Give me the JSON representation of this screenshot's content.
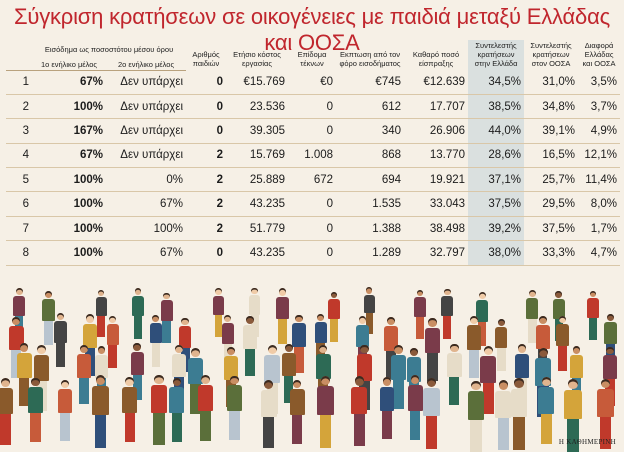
{
  "title": "Σύγκριση κρατήσεων σε οικογένειες με παιδιά μεταξύ Ελλάδας και ΟΟΣΑ",
  "headers": {
    "income_group": "Εισόδημα ως ποσοστότου μέσου όρου",
    "adult1": "1ο ενήλικο μέλος",
    "adult2": "2ο ενήλικο μέλος",
    "children": "Αριθμός παιδιών",
    "gross": "Ετήσιο κόστος εργασίας",
    "allowance": "Επίδομα τέκνων",
    "tax_credit": "Εκπτωση από τον φόρο εισοδήματος",
    "net": "Καθαρό ποσό είσπραξης",
    "rate_gr": "Συντελεστής κρατήσεων στην Ελλάδα",
    "rate_oecd": "Συντελεστής κρατήσεων στον ΟΟΣΑ",
    "diff": "Διαφορά Ελλάδας και ΟΟΣΑ"
  },
  "rows": [
    {
      "idx": "1",
      "adult1": "67%",
      "adult2": "Δεν υπάρχει",
      "children": "0",
      "gross": "€15.769",
      "allowance": "€0",
      "tax_credit": "€745",
      "net": "€12.639",
      "rate_gr": "34,5%",
      "rate_oecd": "31,0%",
      "diff": "3,5%"
    },
    {
      "idx": "2",
      "adult1": "100%",
      "adult2": "Δεν υπάρχει",
      "children": "0",
      "gross": "23.536",
      "allowance": "0",
      "tax_credit": "612",
      "net": "17.707",
      "rate_gr": "38,5%",
      "rate_oecd": "34,8%",
      "diff": "3,7%"
    },
    {
      "idx": "3",
      "adult1": "167%",
      "adult2": "Δεν υπάρχει",
      "children": "0",
      "gross": "39.305",
      "allowance": "0",
      "tax_credit": "340",
      "net": "26.906",
      "rate_gr": "44,0%",
      "rate_oecd": "39,1%",
      "diff": "4,9%"
    },
    {
      "idx": "4",
      "adult1": "67%",
      "adult2": "Δεν υπάρχει",
      "children": "2",
      "gross": "15.769",
      "allowance": "1.008",
      "tax_credit": "868",
      "net": "13.770",
      "rate_gr": "28,6%",
      "rate_oecd": "16,5%",
      "diff": "12,1%"
    },
    {
      "idx": "5",
      "adult1": "100%",
      "adult2": "0%",
      "children": "2",
      "gross": "25.889",
      "allowance": "672",
      "tax_credit": "694",
      "net": "19.921",
      "rate_gr": "37,1%",
      "rate_oecd": "25,7%",
      "diff": "11,4%"
    },
    {
      "idx": "6",
      "adult1": "100%",
      "adult2": "67%",
      "children": "2",
      "gross": "43.235",
      "allowance": "0",
      "tax_credit": "1.535",
      "net": "33.043",
      "rate_gr": "37,5%",
      "rate_oecd": "29,5%",
      "diff": "8,0%"
    },
    {
      "idx": "7",
      "adult1": "100%",
      "adult2": "100%",
      "children": "2",
      "gross": "51.779",
      "allowance": "0",
      "tax_credit": "1.388",
      "net": "38.498",
      "rate_gr": "39,2%",
      "rate_oecd": "37,5%",
      "diff": "1,7%"
    },
    {
      "idx": "8",
      "adult1": "100%",
      "adult2": "67%",
      "children": "0",
      "gross": "43.235",
      "allowance": "0",
      "tax_credit": "1.289",
      "net": "32.797",
      "rate_gr": "38,0%",
      "rate_oecd": "33,3%",
      "diff": "4,7%"
    }
  ],
  "colors": {
    "title": "#c0262d",
    "money": "#b0222a",
    "greek_rate": "#3c7c92",
    "background": "#f6f0e6"
  },
  "illustration": "crowd-of-people",
  "credit": "Η ΚΑΘΗΜΕΡΙΝΗ"
}
